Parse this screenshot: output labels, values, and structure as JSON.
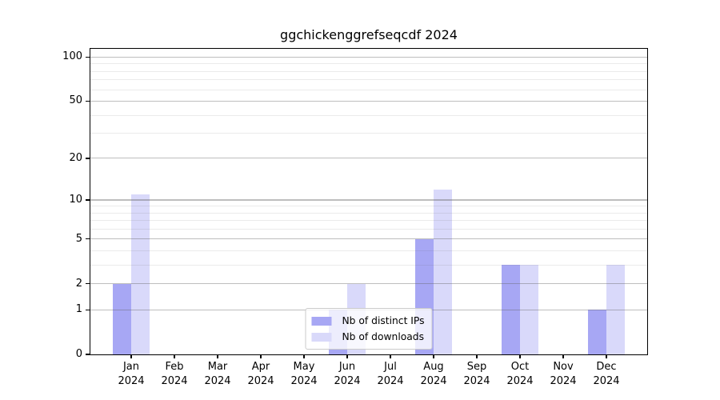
{
  "chart_data": {
    "type": "bar",
    "title": "ggchickenggrefseqcdf 2024",
    "categories": [
      "Jan",
      "Feb",
      "Mar",
      "Apr",
      "May",
      "Jun",
      "Jul",
      "Aug",
      "Sep",
      "Oct",
      "Nov",
      "Dec"
    ],
    "x_year": "2024",
    "series": [
      {
        "name": "Nb of distinct IPs",
        "color": "#a7a7f4",
        "values": [
          2,
          0,
          0,
          0,
          0,
          1,
          0,
          5,
          0,
          3,
          0,
          1
        ]
      },
      {
        "name": "Nb of downloads",
        "color": "#d9d9fa",
        "values": [
          11,
          0,
          0,
          0,
          0,
          2,
          0,
          12,
          0,
          3,
          0,
          3
        ]
      }
    ],
    "yscale": "log1p",
    "ylim": [
      0,
      114
    ],
    "yticks": [
      100,
      50,
      20,
      10,
      5,
      2,
      1,
      0
    ],
    "minor_gridlines": [
      3,
      4,
      6,
      7,
      8,
      9,
      30,
      40,
      60,
      70,
      80,
      90
    ],
    "grid": true,
    "grid_above_bars": true,
    "legend_position": "lower center",
    "colors": {
      "grid_major": "rgba(100,100,100,0.42)",
      "grid_minor": "rgba(100,100,100,0.13)",
      "spine": "#000000",
      "legend_border": "#cbcbcb"
    }
  }
}
